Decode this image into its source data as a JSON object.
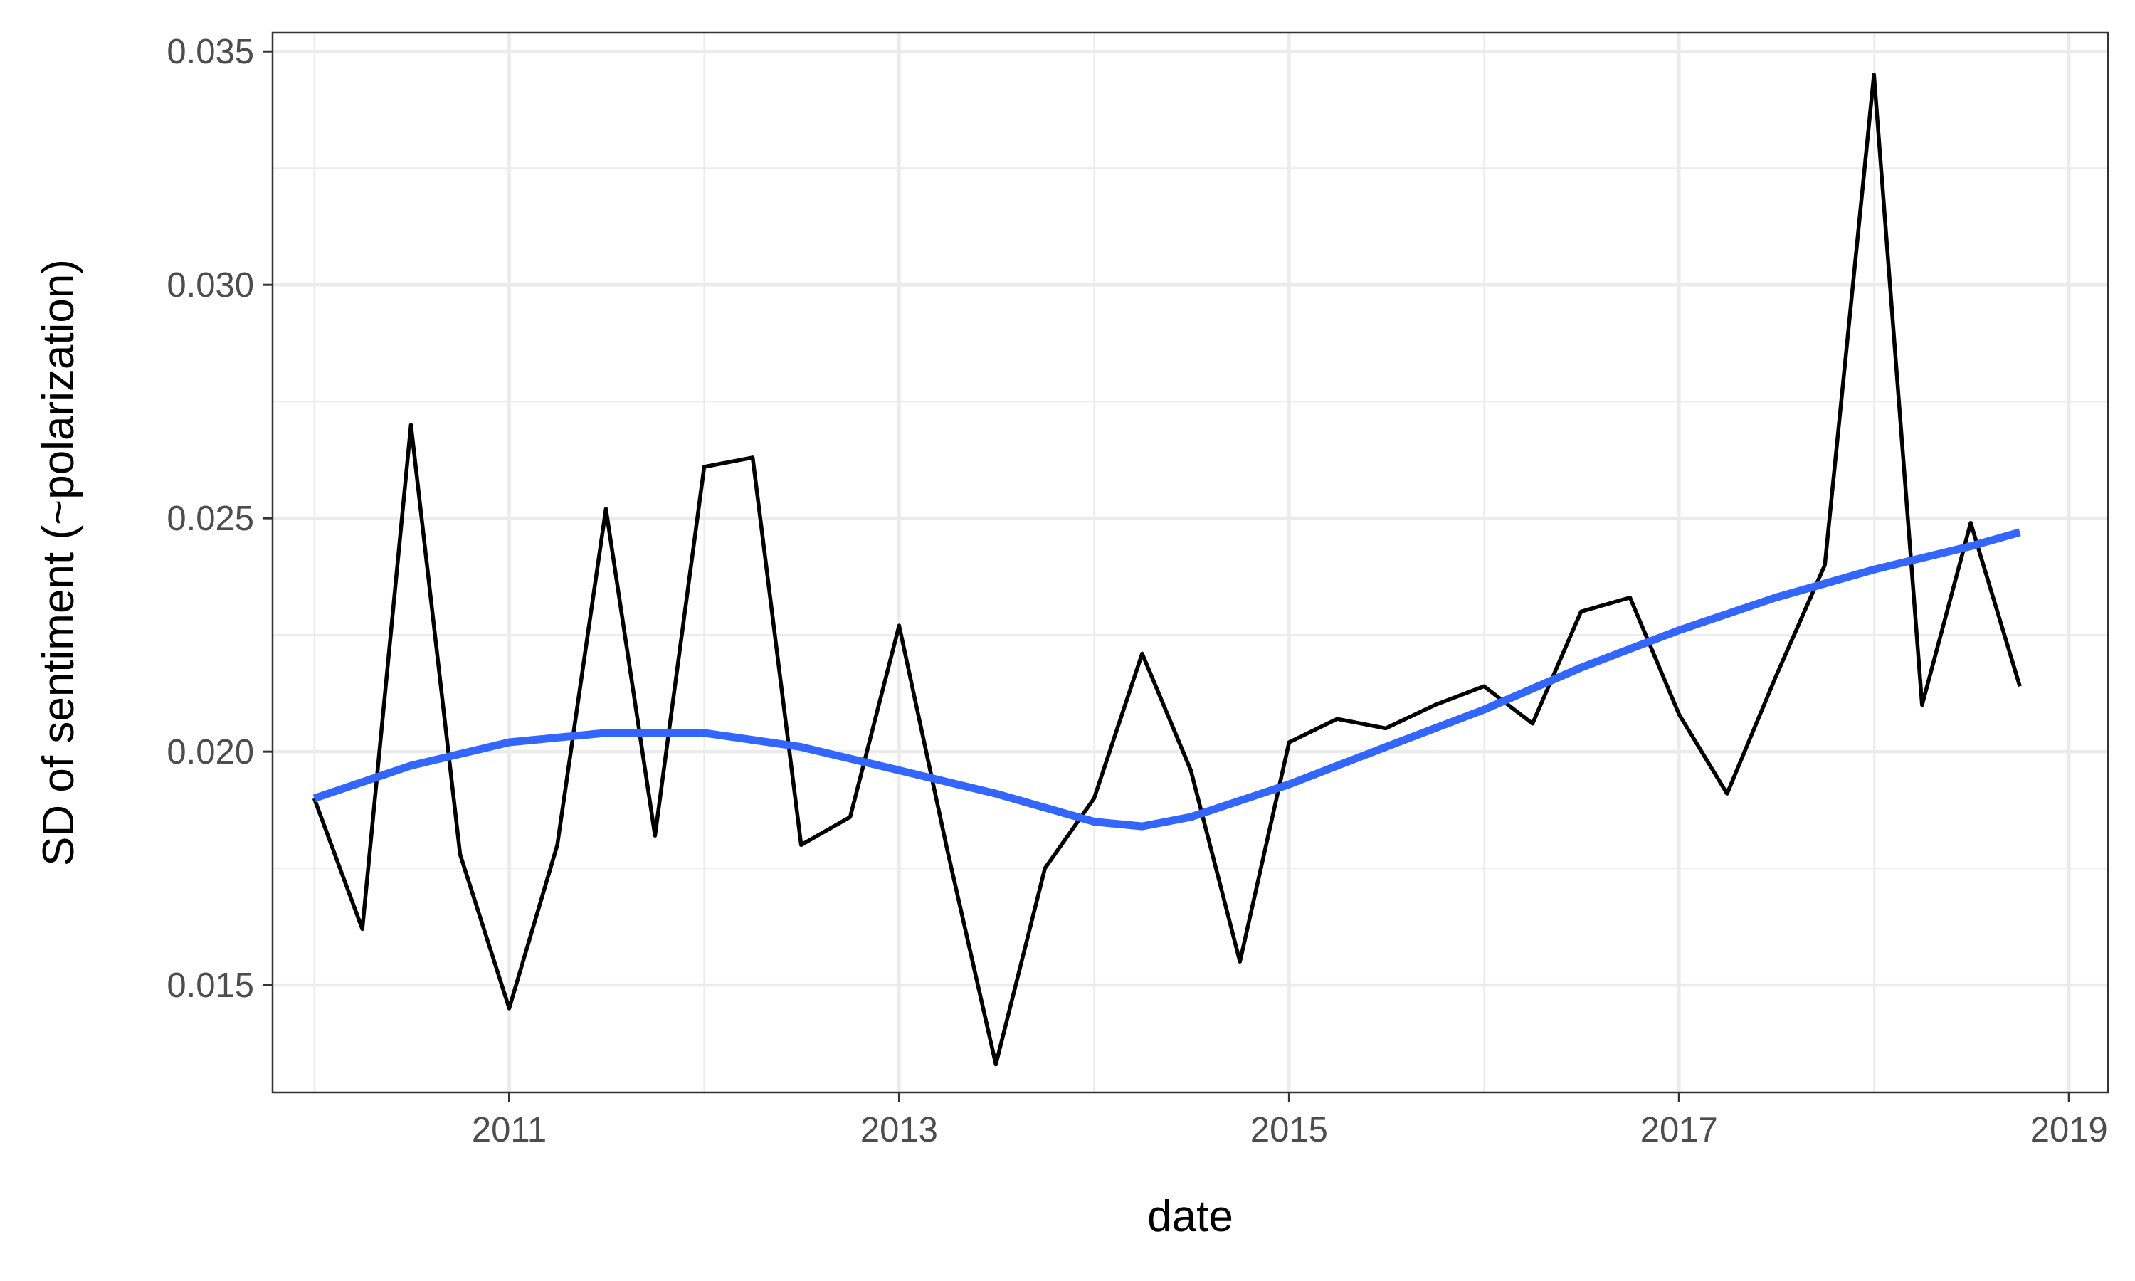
{
  "chart_data": {
    "type": "line",
    "xlabel": "date",
    "ylabel": "SD of sentiment (~polarization)",
    "x_ticks": [
      "2011",
      "2013",
      "2015",
      "2017",
      "2019"
    ],
    "y_ticks": [
      "0.015",
      "0.020",
      "0.025",
      "0.030",
      "0.035"
    ],
    "ylim": [
      0.0127,
      0.0354
    ],
    "xlim": [
      "2009-10-15",
      "2019-03-15"
    ],
    "grid": true,
    "legend": "none",
    "series": [
      {
        "color": "#000000",
        "x": [
          "2010-01-01",
          "2010-04-01",
          "2010-07-01",
          "2010-10-01",
          "2011-01-01",
          "2011-04-01",
          "2011-07-01",
          "2011-10-01",
          "2012-01-01",
          "2012-04-01",
          "2012-07-01",
          "2012-10-01",
          "2013-01-01",
          "2013-04-01",
          "2013-07-01",
          "2013-10-01",
          "2014-01-01",
          "2014-04-01",
          "2014-07-01",
          "2014-10-01",
          "2015-01-01",
          "2015-04-01",
          "2015-07-01",
          "2015-10-01",
          "2016-01-01",
          "2016-04-01",
          "2016-07-01",
          "2016-10-01",
          "2017-01-01",
          "2017-04-01",
          "2017-07-01",
          "2017-10-01",
          "2018-01-01",
          "2018-04-01",
          "2018-07-01",
          "2018-10-01"
        ],
        "values": [
          0.019,
          0.0162,
          0.027,
          0.0178,
          0.0145,
          0.018,
          0.0252,
          0.0182,
          0.0261,
          0.0263,
          0.018,
          0.0186,
          0.0227,
          0.0179,
          0.0133,
          0.0175,
          0.019,
          0.0221,
          0.0196,
          0.0155,
          0.0202,
          0.0207,
          0.0205,
          0.021,
          0.0214,
          0.0206,
          0.023,
          0.0233,
          0.0208,
          0.0191,
          0.0216,
          0.024,
          0.0345,
          0.021,
          0.0249,
          0.0214
        ]
      },
      {
        "color": "#3366ff",
        "x": [
          "2010-01-01",
          "2010-07-01",
          "2011-01-01",
          "2011-07-01",
          "2012-01-01",
          "2012-07-01",
          "2013-01-01",
          "2013-07-01",
          "2014-01-01",
          "2014-04-01",
          "2014-07-01",
          "2015-01-01",
          "2015-07-01",
          "2016-01-01",
          "2016-07-01",
          "2017-01-01",
          "2017-07-01",
          "2018-01-01",
          "2018-07-01",
          "2018-10-01"
        ],
        "values": [
          0.019,
          0.0197,
          0.0202,
          0.0204,
          0.0204,
          0.0201,
          0.0196,
          0.0191,
          0.0185,
          0.0184,
          0.0186,
          0.0193,
          0.0201,
          0.0209,
          0.0218,
          0.0226,
          0.0233,
          0.0239,
          0.0244,
          0.0247
        ]
      }
    ]
  }
}
